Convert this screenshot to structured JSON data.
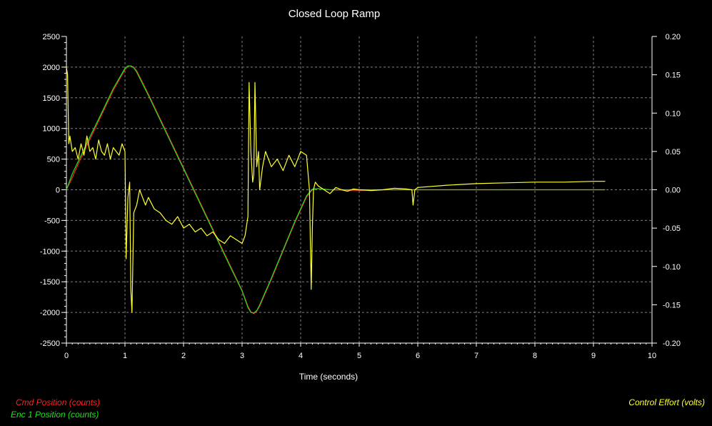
{
  "chart_data": {
    "type": "line",
    "title": "Closed Loop Ramp",
    "xlabel": "Time (seconds)",
    "ylabel": "",
    "y2label": "",
    "xlim": [
      0,
      10
    ],
    "ylim": [
      -2500,
      2500
    ],
    "y2lim": [
      -0.2,
      0.2
    ],
    "xticks": [
      "0",
      "1",
      "2",
      "3",
      "4",
      "5",
      "6",
      "7",
      "8",
      "9",
      "10"
    ],
    "yticks": [
      "2500",
      "2000",
      "1500",
      "1000",
      "500",
      "0",
      "-500",
      "-1000",
      "-1500",
      "-2000",
      "-2500"
    ],
    "y2ticks": [
      "0.20",
      "0.15",
      "0.10",
      "0.05",
      "0.00",
      "-0.05",
      "-0.10",
      "-0.15",
      "-0.20"
    ],
    "grid": true,
    "legend_left": [
      {
        "name": "Cmd Position (counts)",
        "color": "#ff2020"
      },
      {
        "name": "Enc 1 Position (counts)",
        "color": "#20e020"
      }
    ],
    "legend_right": [
      {
        "name": "Control Effort (volts)",
        "color": "#ffff30"
      }
    ],
    "series": [
      {
        "name": "Cmd Position (counts)",
        "axis": "left",
        "color": "#ff2020",
        "x": [
          0,
          0.1,
          0.2,
          0.4,
          0.6,
          0.8,
          1.0,
          1.05,
          1.1,
          1.15,
          1.2,
          1.4,
          1.6,
          1.8,
          2.0,
          2.2,
          2.4,
          2.6,
          2.8,
          3.0,
          3.1,
          3.15,
          3.2,
          3.25,
          3.3,
          3.5,
          3.7,
          3.9,
          4.1,
          4.2,
          4.3,
          4.5,
          5.0,
          5.5,
          6.0,
          7.0,
          8.0,
          9.2
        ],
        "y": [
          0,
          200,
          420,
          820,
          1220,
          1620,
          1960,
          2010,
          2020,
          2000,
          1940,
          1560,
          1160,
          760,
          360,
          -40,
          -440,
          -840,
          -1240,
          -1640,
          -1900,
          -1990,
          -2020,
          -1980,
          -1900,
          -1460,
          -1000,
          -540,
          -120,
          0,
          20,
          0,
          -10,
          0,
          0,
          0,
          0,
          0
        ]
      },
      {
        "name": "Enc 1 Position (counts)",
        "axis": "left",
        "color": "#20e020",
        "x": [
          0,
          0.1,
          0.2,
          0.4,
          0.6,
          0.8,
          1.0,
          1.05,
          1.1,
          1.15,
          1.2,
          1.4,
          1.6,
          1.8,
          2.0,
          2.2,
          2.4,
          2.6,
          2.8,
          3.0,
          3.1,
          3.15,
          3.2,
          3.25,
          3.3,
          3.5,
          3.7,
          3.9,
          4.1,
          4.2,
          4.3,
          4.5,
          5.0,
          5.5,
          6.0,
          7.0,
          8.0,
          9.2
        ],
        "y": [
          0,
          260,
          460,
          860,
          1250,
          1650,
          1980,
          2020,
          2020,
          1990,
          1920,
          1540,
          1140,
          740,
          340,
          -60,
          -460,
          -860,
          -1260,
          -1650,
          -1920,
          -2000,
          -2010,
          -1970,
          -1880,
          -1440,
          -980,
          -520,
          -100,
          10,
          20,
          0,
          0,
          0,
          0,
          0,
          0,
          0
        ]
      },
      {
        "name": "Control Effort (volts)",
        "axis": "right",
        "color": "#ffff30",
        "x": [
          0,
          0.02,
          0.04,
          0.06,
          0.1,
          0.15,
          0.2,
          0.25,
          0.3,
          0.35,
          0.4,
          0.45,
          0.5,
          0.55,
          0.6,
          0.65,
          0.7,
          0.75,
          0.8,
          0.85,
          0.9,
          0.95,
          1.0,
          1.02,
          1.05,
          1.08,
          1.1,
          1.12,
          1.15,
          1.2,
          1.25,
          1.3,
          1.35,
          1.4,
          1.5,
          1.6,
          1.7,
          1.8,
          1.9,
          2.0,
          2.1,
          2.2,
          2.3,
          2.4,
          2.5,
          2.6,
          2.7,
          2.8,
          2.9,
          3.0,
          3.05,
          3.1,
          3.12,
          3.15,
          3.18,
          3.2,
          3.22,
          3.25,
          3.28,
          3.3,
          3.35,
          3.4,
          3.5,
          3.6,
          3.7,
          3.8,
          3.9,
          4.0,
          4.1,
          4.15,
          4.18,
          4.2,
          4.22,
          4.25,
          4.3,
          4.4,
          4.5,
          4.6,
          4.7,
          4.8,
          4.9,
          5.0,
          5.2,
          5.4,
          5.6,
          5.8,
          5.9,
          5.92,
          5.95,
          6.0,
          6.5,
          7.0,
          7.5,
          8.0,
          8.5,
          9.0,
          9.2
        ],
        "y": [
          0.16,
          0.15,
          0.06,
          0.07,
          0.05,
          0.055,
          0.04,
          0.06,
          0.045,
          0.07,
          0.05,
          0.055,
          0.04,
          0.065,
          0.05,
          0.045,
          0.06,
          0.04,
          0.055,
          0.05,
          0.045,
          0.06,
          0.05,
          -0.09,
          -0.01,
          0.01,
          -0.13,
          -0.16,
          -0.03,
          -0.02,
          0.0,
          -0.01,
          -0.02,
          -0.01,
          -0.025,
          -0.03,
          -0.04,
          -0.045,
          -0.035,
          -0.05,
          -0.045,
          -0.055,
          -0.05,
          -0.06,
          -0.055,
          -0.065,
          -0.07,
          -0.06,
          -0.065,
          -0.07,
          -0.06,
          -0.035,
          0.14,
          0.05,
          0.01,
          0.02,
          0.14,
          0.03,
          0.05,
          0.0,
          0.03,
          0.05,
          0.03,
          0.04,
          0.025,
          0.045,
          0.03,
          0.05,
          0.045,
          0.0,
          -0.13,
          -0.05,
          0.0,
          0.01,
          0.005,
          0.0,
          -0.005,
          0.003,
          0.0,
          -0.002,
          0.001,
          0.0,
          -0.001,
          0.0,
          0.002,
          0.001,
          0.0,
          -0.02,
          0.0,
          0.003,
          0.006,
          0.008,
          0.009,
          0.01,
          0.01,
          0.011,
          0.011
        ]
      }
    ]
  }
}
